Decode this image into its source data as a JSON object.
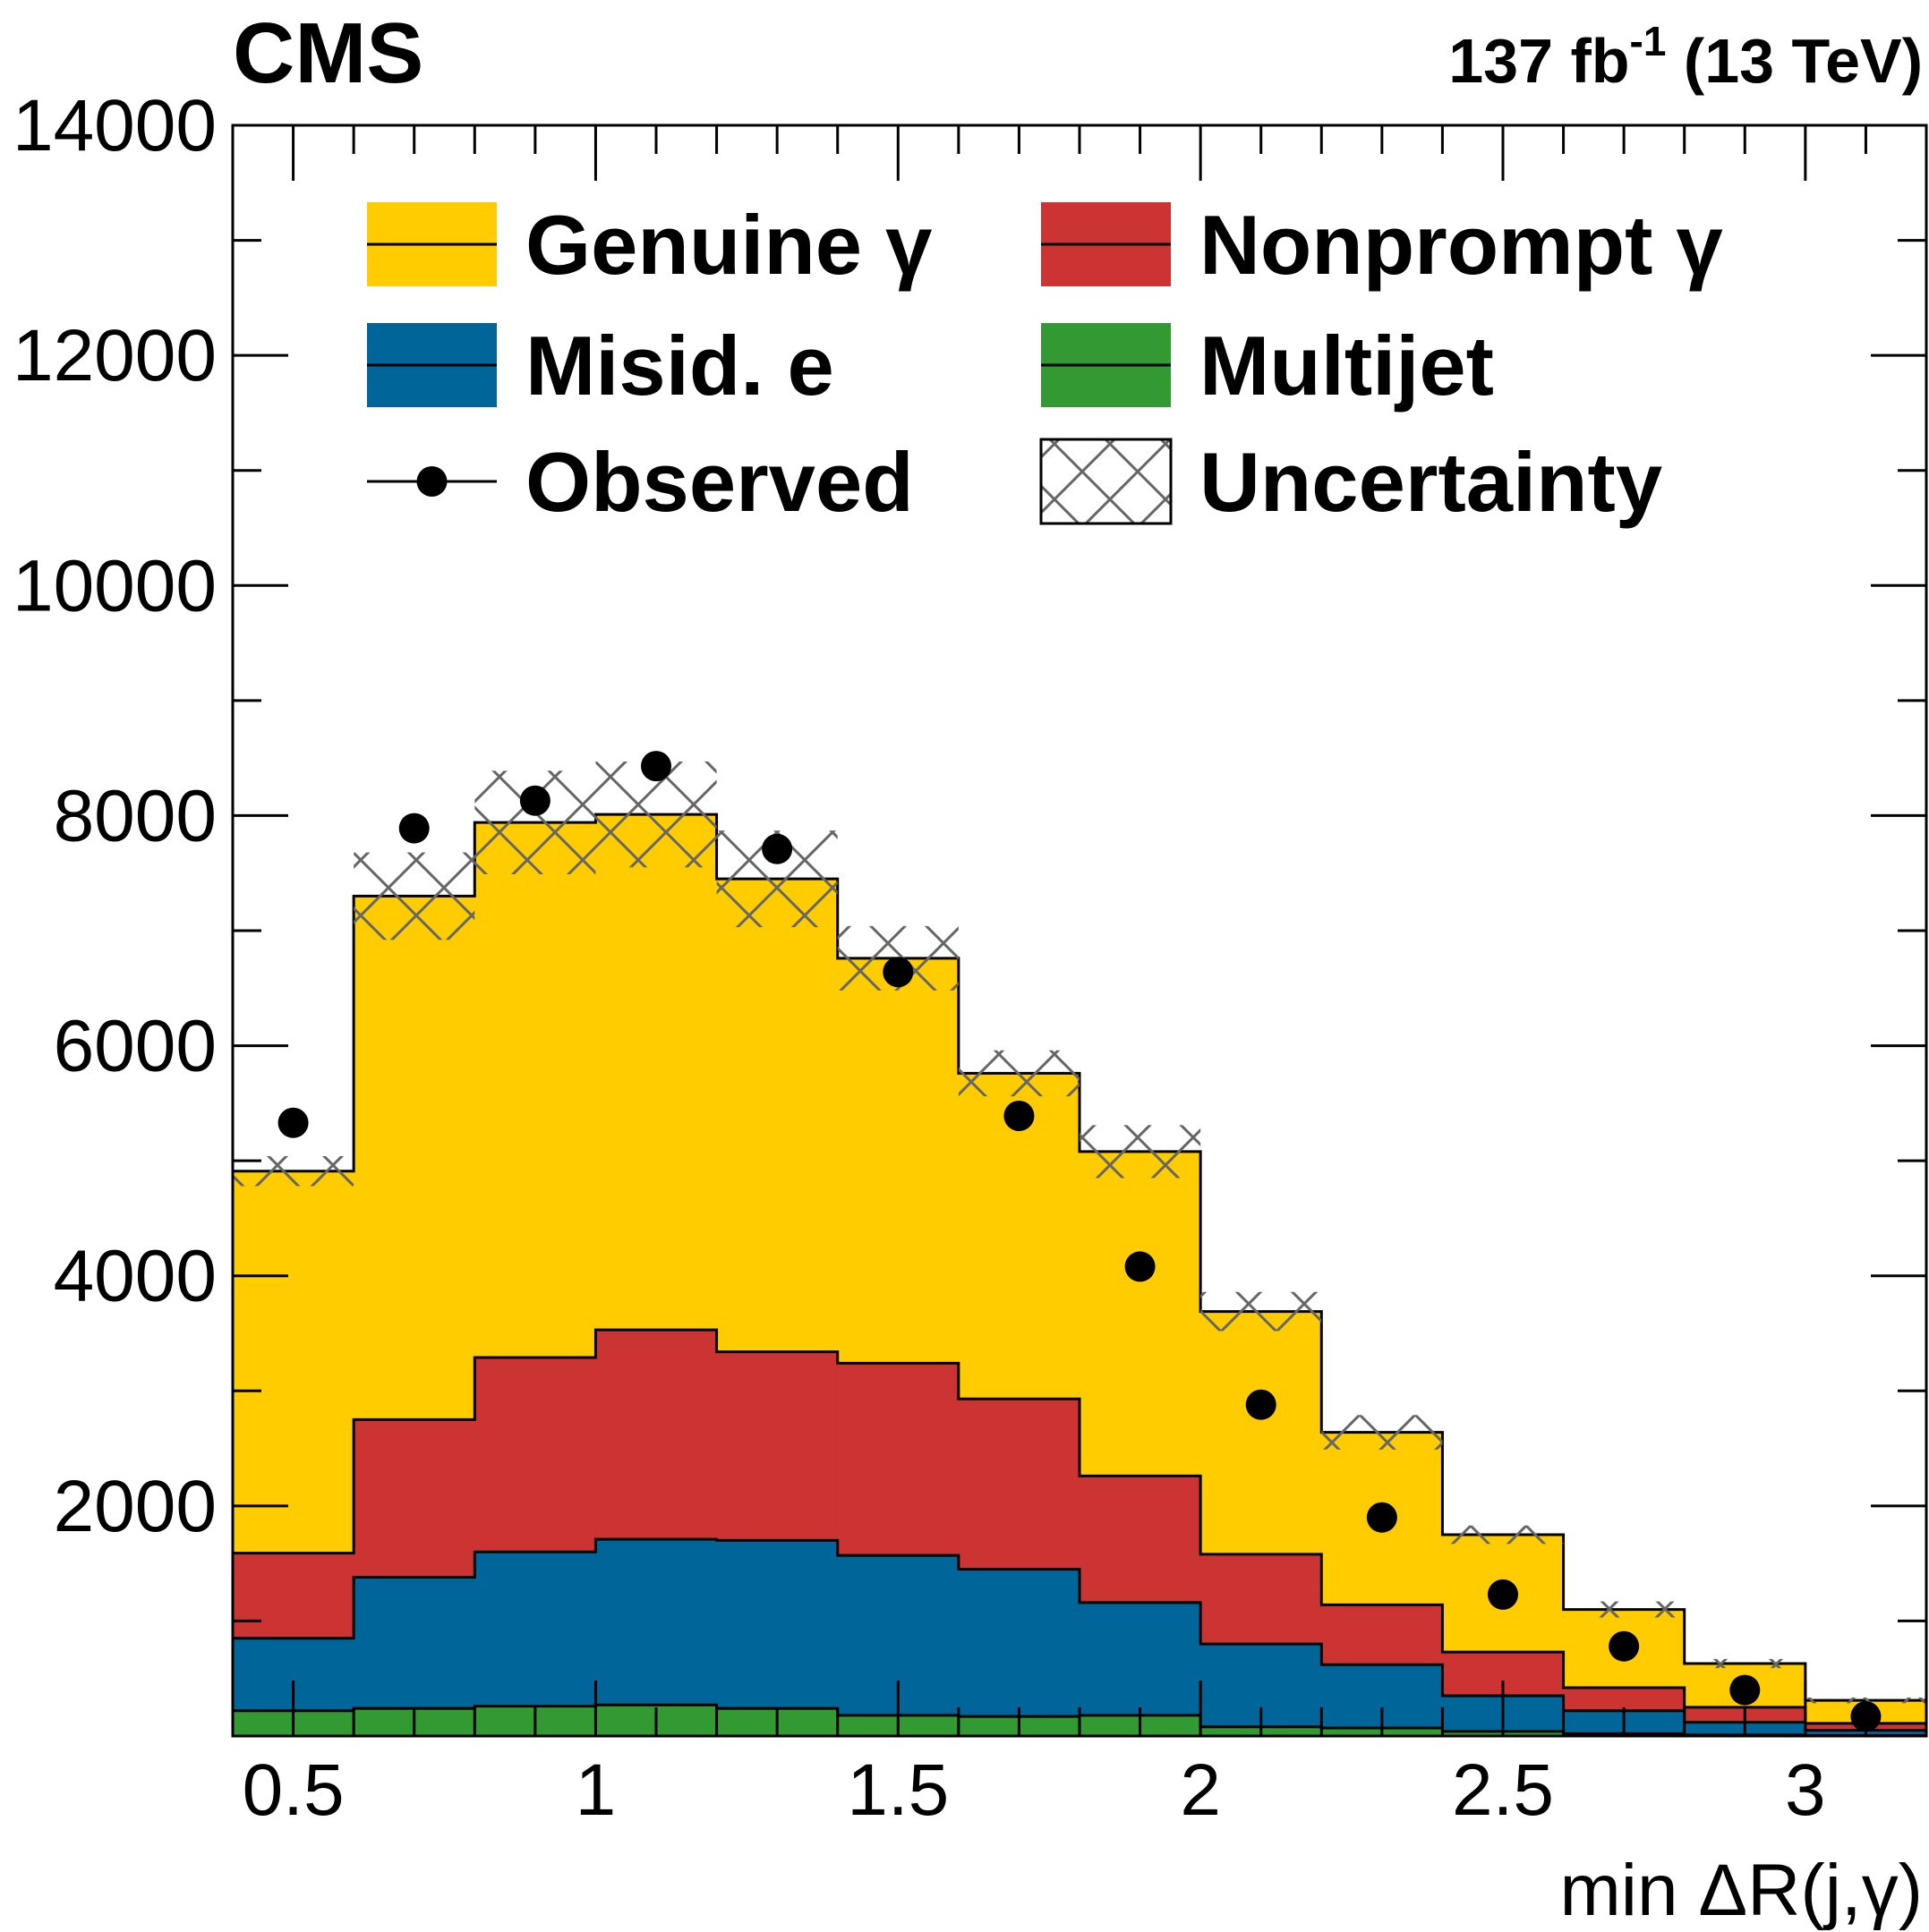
{
  "chart_data": {
    "type": "bar",
    "stacked": true,
    "header": {
      "experiment": "CMS",
      "lumi_value": "137 fb",
      "lumi_exp": "-1",
      "energy": " (13 TeV)"
    },
    "xlabel": "min ΔR(j,γ)",
    "ylabel": "",
    "xlim": [
      0.4,
      3.2
    ],
    "ylim": [
      0,
      14000
    ],
    "x_ticks": [
      0.5,
      1,
      1.5,
      2,
      2.5,
      3
    ],
    "x_tick_labels": [
      "0.5",
      "1",
      "1.5",
      "2",
      "2.5",
      "3"
    ],
    "y_ticks": [
      0,
      2000,
      4000,
      6000,
      8000,
      10000,
      12000,
      14000
    ],
    "y_tick_labels": [
      "",
      "2000",
      "4000",
      "6000",
      "8000",
      "10000",
      "12000",
      "14000"
    ],
    "bin_edges": [
      0.4,
      0.6,
      0.8,
      1.0,
      1.2,
      1.4,
      1.6,
      1.8,
      2.0,
      2.2,
      2.4,
      2.6,
      2.8,
      3.0,
      3.2
    ],
    "series": [
      {
        "name": "Multijet",
        "color": "#339933",
        "values": [
          220,
          240,
          260,
          270,
          240,
          180,
          170,
          180,
          80,
          70,
          40,
          20,
          10,
          5
        ]
      },
      {
        "name": "Misid. e",
        "color": "#006699",
        "values": [
          630,
          1140,
          1340,
          1440,
          1460,
          1390,
          1280,
          980,
          720,
          550,
          310,
          200,
          110,
          45
        ]
      },
      {
        "name": "Nonprompt γ",
        "color": "#cc3333",
        "values": [
          740,
          1370,
          1690,
          1820,
          1640,
          1670,
          1480,
          1100,
          780,
          520,
          380,
          200,
          130,
          60
        ]
      },
      {
        "name": "Genuine γ",
        "color": "#ffcc00",
        "values": [
          3320,
          4550,
          4650,
          4480,
          4110,
          3520,
          2830,
          2820,
          2110,
          1500,
          1020,
          680,
          380,
          200
        ]
      }
    ],
    "uncertainty": {
      "name": "Uncertainty",
      "half_width": [
        130,
        380,
        450,
        460,
        420,
        280,
        200,
        230,
        170,
        150,
        80,
        70,
        40,
        25
      ]
    },
    "observed": {
      "name": "Observed",
      "x": [
        0.5,
        0.7,
        0.9,
        1.1,
        1.3,
        1.5,
        1.7,
        1.9,
        2.1,
        2.3,
        2.5,
        2.7,
        2.9,
        3.1
      ],
      "y": [
        5330,
        7890,
        8130,
        8430,
        7710,
        6640,
        5390,
        4080,
        2880,
        1900,
        1230,
        780,
        400,
        170
      ]
    },
    "legend": {
      "placement": "top",
      "entries": [
        {
          "label": "Genuine γ",
          "kind": "fill",
          "color": "#ffcc00"
        },
        {
          "label": "Nonprompt γ",
          "kind": "fill",
          "color": "#cc3333"
        },
        {
          "label": "Misid. e",
          "kind": "fill",
          "color": "#006699"
        },
        {
          "label": "Multijet",
          "kind": "fill",
          "color": "#339933"
        },
        {
          "label": "Observed",
          "kind": "marker"
        },
        {
          "label": "Uncertainty",
          "kind": "hatch"
        }
      ]
    }
  }
}
